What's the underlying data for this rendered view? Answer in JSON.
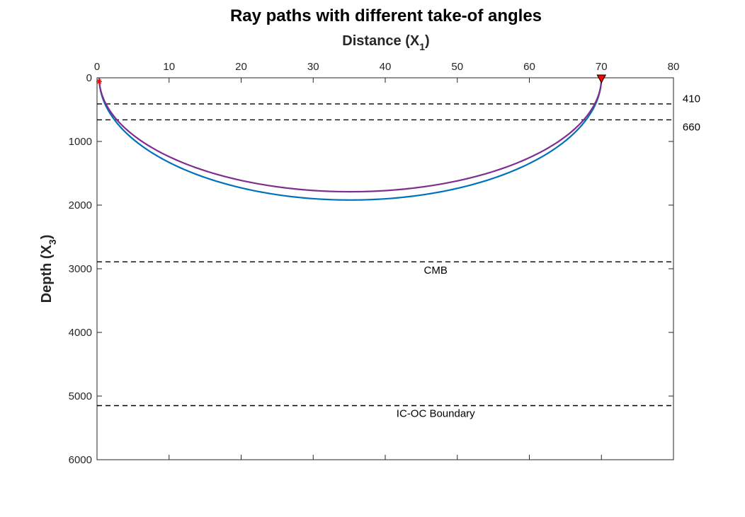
{
  "chart_data": {
    "type": "line",
    "title": "Ray paths with different take-of angles",
    "xlabel": {
      "main": "Distance (X",
      "sub": "1",
      "close": ")"
    },
    "ylabel": {
      "main": "Depth (X",
      "sub": "3",
      "close": ")"
    },
    "xlim": [
      0,
      80
    ],
    "ylim": [
      0,
      6000
    ],
    "x_axis_location": "top",
    "y_reversed": true,
    "grid": false,
    "xticks": [
      0,
      10,
      20,
      30,
      40,
      50,
      60,
      70,
      80
    ],
    "yticks": [
      0,
      1000,
      2000,
      3000,
      4000,
      5000,
      6000
    ],
    "series": [
      {
        "color": "#0072BD",
        "x_start": 0.3,
        "x_end": 70,
        "max_depth": 1920
      },
      {
        "color": "#7E2F8E",
        "x_start": 0.3,
        "x_end": 70,
        "max_depth": 1790
      }
    ],
    "boundaries": [
      {
        "depth": 410,
        "label": "410",
        "label_x": 82.5,
        "label_depth": 330,
        "color": "#000000"
      },
      {
        "depth": 660,
        "label": "660",
        "label_x": 82.5,
        "label_depth": 770,
        "color": "#000000"
      },
      {
        "depth": 2891,
        "label": "CMB",
        "label_x": 47,
        "label_depth": 3020,
        "color": "#000000"
      },
      {
        "depth": 5150,
        "label": "IC-OC Boundary",
        "label_x": 47,
        "label_depth": 5270,
        "color": "#000000"
      }
    ],
    "source": {
      "x": 0.3,
      "depth": 60,
      "marker": "asterisk",
      "color": "#FF0000"
    },
    "receiver": {
      "x": 70,
      "depth": 0,
      "marker": "triangle-down",
      "color": "#FF0000"
    }
  }
}
